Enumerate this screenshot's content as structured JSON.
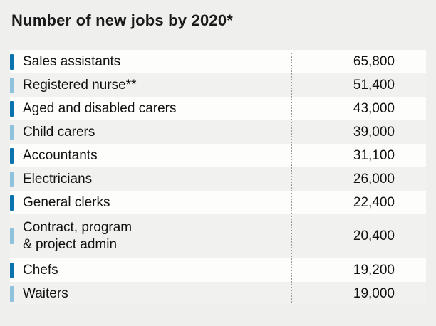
{
  "title": "Number of new jobs by 2020*",
  "colors": {
    "tick_dark": "#0b73ae",
    "tick_light": "#8fc2dd"
  },
  "rows": [
    {
      "label": "Sales assistants",
      "value": "65,800",
      "tick": "dark"
    },
    {
      "label": "Registered nurse**",
      "value": "51,400",
      "tick": "light"
    },
    {
      "label": "Aged and disabled carers",
      "value": "43,000",
      "tick": "dark"
    },
    {
      "label": "Child carers",
      "value": "39,000",
      "tick": "light"
    },
    {
      "label": "Accountants",
      "value": "31,100",
      "tick": "dark"
    },
    {
      "label": "Electricians",
      "value": "26,000",
      "tick": "light"
    },
    {
      "label": "General clerks",
      "value": "22,400",
      "tick": "dark"
    },
    {
      "label": "Contract, program\n& project admin",
      "value": "20,400",
      "tick": "light"
    },
    {
      "label": "Chefs",
      "value": "19,200",
      "tick": "dark"
    },
    {
      "label": "Waiters",
      "value": "19,000",
      "tick": "light"
    }
  ],
  "chart_data": {
    "type": "table",
    "title": "Number of new jobs by 2020*",
    "categories": [
      "Sales assistants",
      "Registered nurse**",
      "Aged and disabled carers",
      "Child carers",
      "Accountants",
      "Electricians",
      "General clerks",
      "Contract, program & project admin",
      "Chefs",
      "Waiters"
    ],
    "values": [
      65800,
      51400,
      43000,
      39000,
      31100,
      26000,
      22400,
      20400,
      19200,
      19000
    ],
    "xlabel": "",
    "ylabel": "Number of new jobs",
    "legend": "none",
    "grid": "off"
  }
}
